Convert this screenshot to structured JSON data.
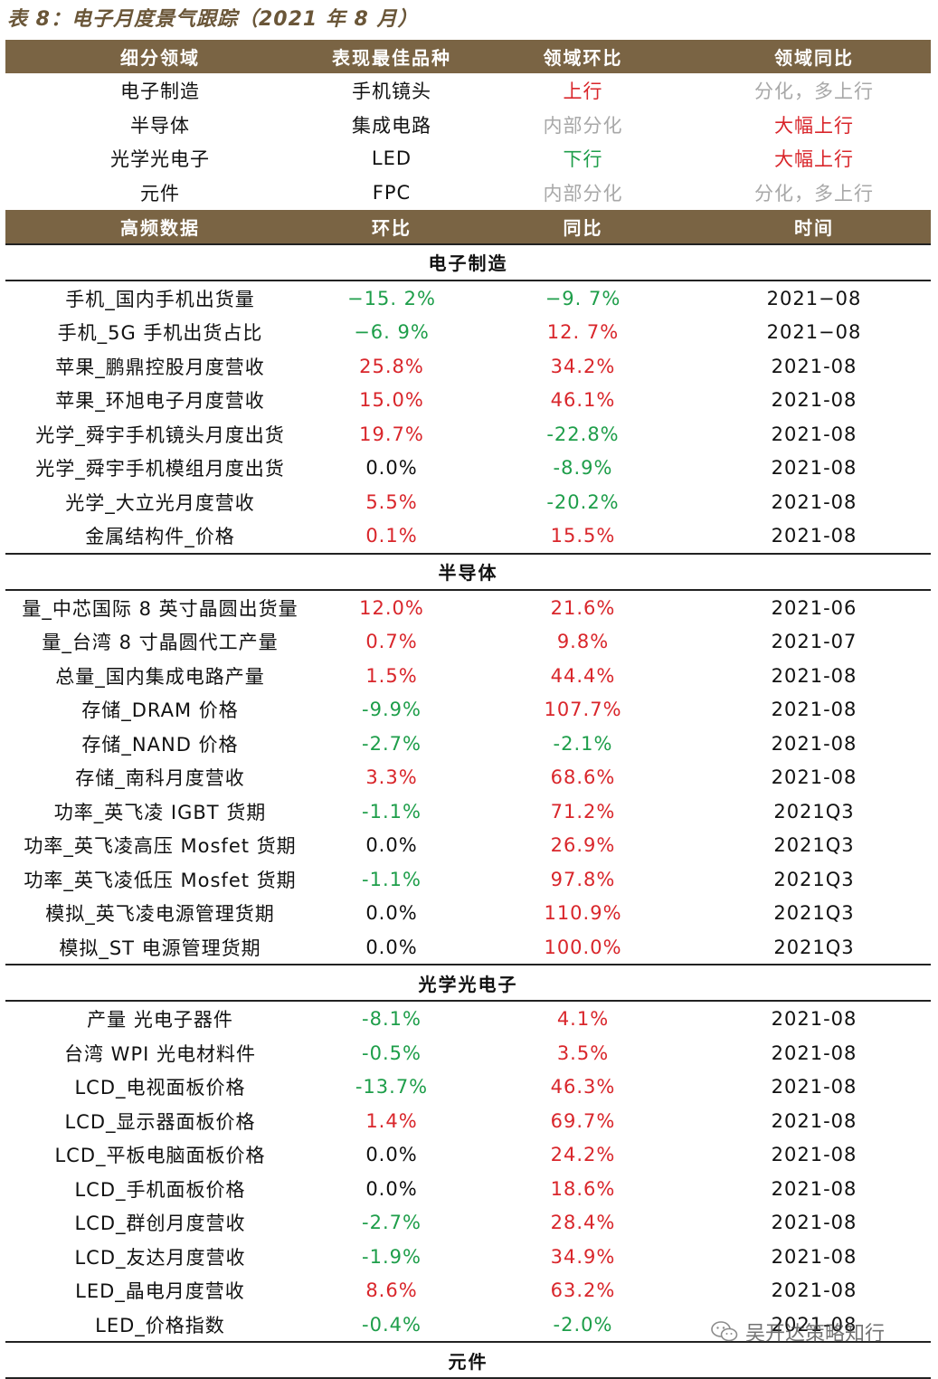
{
  "title": "表 8：电子月度景气跟踪（2021 年 8 月）",
  "summary": {
    "headers": [
      "细分领域",
      "表现最佳品种",
      "领域环比",
      "领域同比"
    ],
    "rows": [
      {
        "domain": "电子制造",
        "best": "手机镜头",
        "mom": "上行",
        "yoy": "分化，多上行"
      },
      {
        "domain": "半导体",
        "best": "集成电路",
        "mom": "内部分化",
        "yoy": "大幅上行"
      },
      {
        "domain": "光学光电子",
        "best": "LED",
        "mom": "下行",
        "yoy": "大幅上行"
      },
      {
        "domain": "元件",
        "best": "FPC",
        "mom": "内部分化",
        "yoy": "分化，多上行"
      }
    ]
  },
  "detail": {
    "headers": [
      "高频数据",
      "环比",
      "同比",
      "时间"
    ],
    "sections": [
      {
        "name": "电子制造",
        "rows": [
          {
            "item": "手机_国内手机出货量",
            "mom": "−15. 2%",
            "yoy": "−9. 7%",
            "time": "2021−08"
          },
          {
            "item": "手机_5G 手机出货占比",
            "mom": "−6. 9%",
            "yoy": "12. 7%",
            "time": "2021−08"
          },
          {
            "item": "苹果_鹏鼎控股月度营收",
            "mom": "25.8%",
            "yoy": "34.2%",
            "time": "2021-08"
          },
          {
            "item": "苹果_环旭电子月度营收",
            "mom": "15.0%",
            "yoy": "46.1%",
            "time": "2021-08"
          },
          {
            "item": "光学_舜宇手机镜头月度出货",
            "mom": "19.7%",
            "yoy": "-22.8%",
            "time": "2021-08"
          },
          {
            "item": "光学_舜宇手机模组月度出货",
            "mom": "0.0%",
            "yoy": "-8.9%",
            "time": "2021-08"
          },
          {
            "item": "光学_大立光月度营收",
            "mom": "5.5%",
            "yoy": "-20.2%",
            "time": "2021-08"
          },
          {
            "item": "金属结构件_价格",
            "mom": "0.1%",
            "yoy": "15.5%",
            "time": "2021-08"
          }
        ]
      },
      {
        "name": "半导体",
        "rows": [
          {
            "item": "量_中芯国际 8 英寸晶圆出货量",
            "mom": "12.0%",
            "yoy": "21.6%",
            "time": "2021-06"
          },
          {
            "item": "量_台湾 8 寸晶圆代工产量",
            "mom": "0.7%",
            "yoy": "9.8%",
            "time": "2021-07"
          },
          {
            "item": "总量_国内集成电路产量",
            "mom": "1.5%",
            "yoy": "44.4%",
            "time": "2021-08"
          },
          {
            "item": "存储_DRAM 价格",
            "mom": "-9.9%",
            "yoy": "107.7%",
            "time": "2021-08"
          },
          {
            "item": "存储_NAND 价格",
            "mom": "-2.7%",
            "yoy": "-2.1%",
            "time": "2021-08"
          },
          {
            "item": "存储_南科月度营收",
            "mom": "3.3%",
            "yoy": "68.6%",
            "time": "2021-08"
          },
          {
            "item": "功率_英飞凌 IGBT 货期",
            "mom": "-1.1%",
            "yoy": "71.2%",
            "time": "2021Q3"
          },
          {
            "item": "功率_英飞凌高压 Mosfet 货期",
            "mom": "0.0%",
            "yoy": "26.9%",
            "time": "2021Q3"
          },
          {
            "item": "功率_英飞凌低压 Mosfet 货期",
            "mom": "-1.1%",
            "yoy": "97.8%",
            "time": "2021Q3"
          },
          {
            "item": "模拟_英飞凌电源管理货期",
            "mom": "0.0%",
            "yoy": "110.9%",
            "time": "2021Q3"
          },
          {
            "item": "模拟_ST 电源管理货期",
            "mom": "0.0%",
            "yoy": "100.0%",
            "time": "2021Q3"
          }
        ]
      },
      {
        "name": "光学光电子",
        "rows": [
          {
            "item": "产量 光电子器件",
            "mom": "-8.1%",
            "yoy": "4.1%",
            "time": "2021-08"
          },
          {
            "item": "台湾 WPI 光电材料件",
            "mom": "-0.5%",
            "yoy": "3.5%",
            "time": "2021-08"
          },
          {
            "item": "LCD_电视面板价格",
            "mom": "-13.7%",
            "yoy": "46.3%",
            "time": "2021-08"
          },
          {
            "item": "LCD_显示器面板价格",
            "mom": "1.4%",
            "yoy": "69.7%",
            "time": "2021-08"
          },
          {
            "item": "LCD_平板电脑面板价格",
            "mom": "0.0%",
            "yoy": "24.2%",
            "time": "2021-08"
          },
          {
            "item": "LCD_手机面板价格",
            "mom": "0.0%",
            "yoy": "18.6%",
            "time": "2021-08"
          },
          {
            "item": "LCD_群创月度营收",
            "mom": "-2.7%",
            "yoy": "28.4%",
            "time": "2021-08"
          },
          {
            "item": "LCD_友达月度营收",
            "mom": "-1.9%",
            "yoy": "34.9%",
            "time": "2021-08"
          },
          {
            "item": "LED_晶电月度营收",
            "mom": "8.6%",
            "yoy": "63.2%",
            "time": "2021-08"
          },
          {
            "item": "LED_价格指数",
            "mom": "-0.4%",
            "yoy": "-2.0%",
            "time": "2021-08"
          }
        ]
      },
      {
        "name": "元件",
        "rows": []
      }
    ]
  },
  "watermark": "吴开达策略知行",
  "colors": {
    "header_bg": "#7a6444",
    "up": "#d9262b",
    "down": "#1e9e4a",
    "mixed": "#a8a8a8",
    "title": "#6a5638"
  }
}
